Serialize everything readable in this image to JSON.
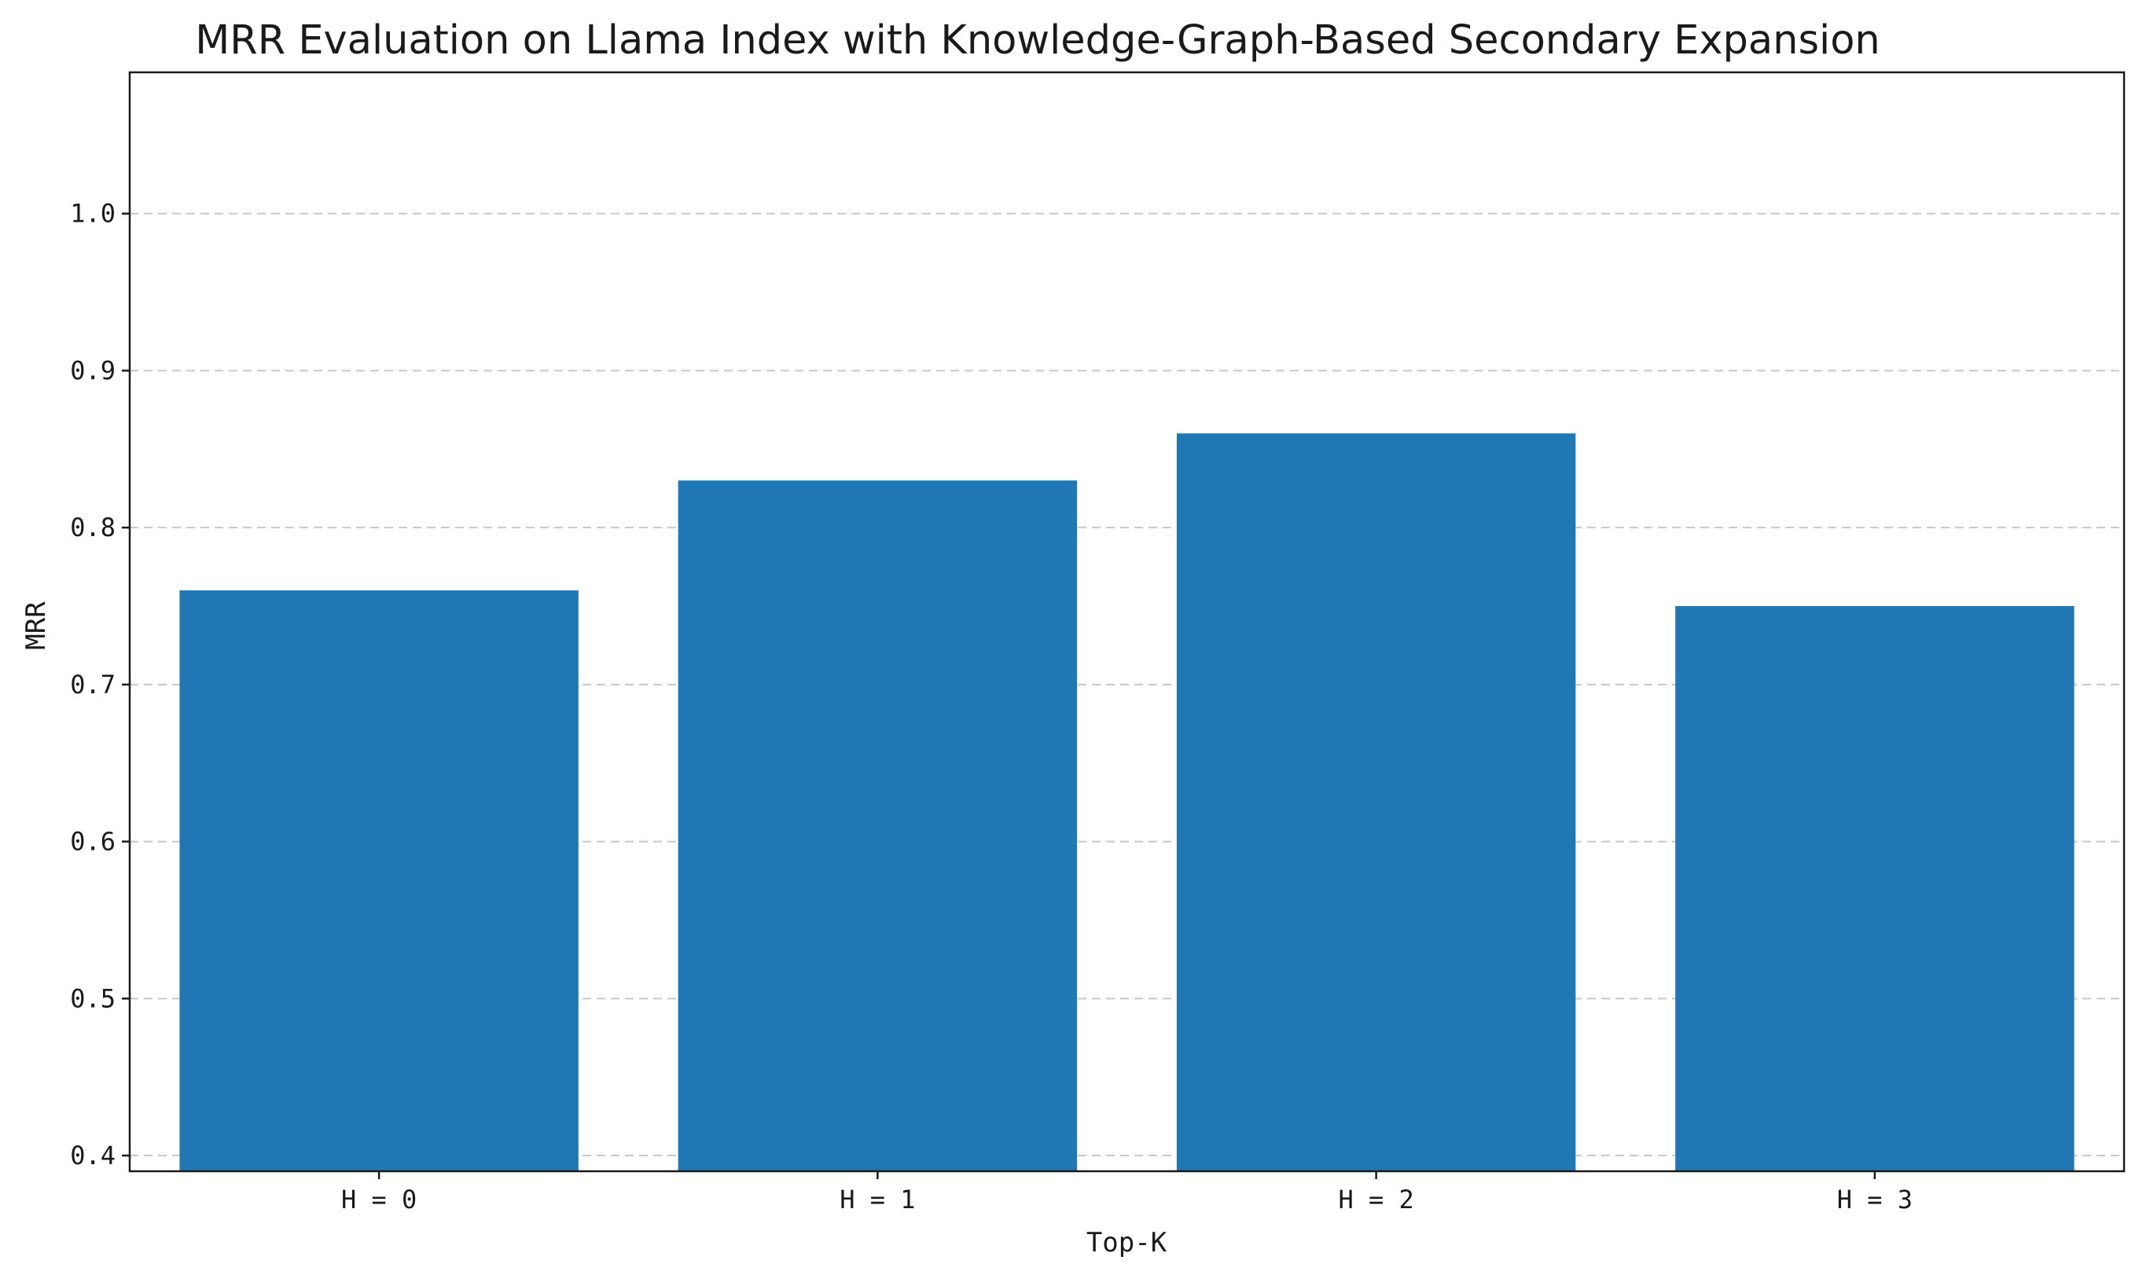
{
  "chart_data": {
    "type": "bar",
    "title": "MRR Evaluation on Llama Index with Knowledge-Graph-Based Secondary Expansion",
    "xlabel": "Top-K",
    "ylabel": "MRR",
    "categories": [
      "H = 0",
      "H = 1",
      "H = 2",
      "H = 3"
    ],
    "values": [
      0.76,
      0.83,
      0.86,
      0.75
    ],
    "ylim": [
      0.39,
      1.09
    ],
    "yticks": [
      0.4,
      0.5,
      0.6,
      0.7,
      0.8,
      0.9,
      1.0
    ],
    "ytick_labels": [
      "0.4",
      "0.5",
      "0.6",
      "0.7",
      "0.8",
      "0.9",
      "1.0"
    ],
    "grid": "horizontal dashed",
    "legend": "none",
    "bar_color": "#1f77b4"
  }
}
